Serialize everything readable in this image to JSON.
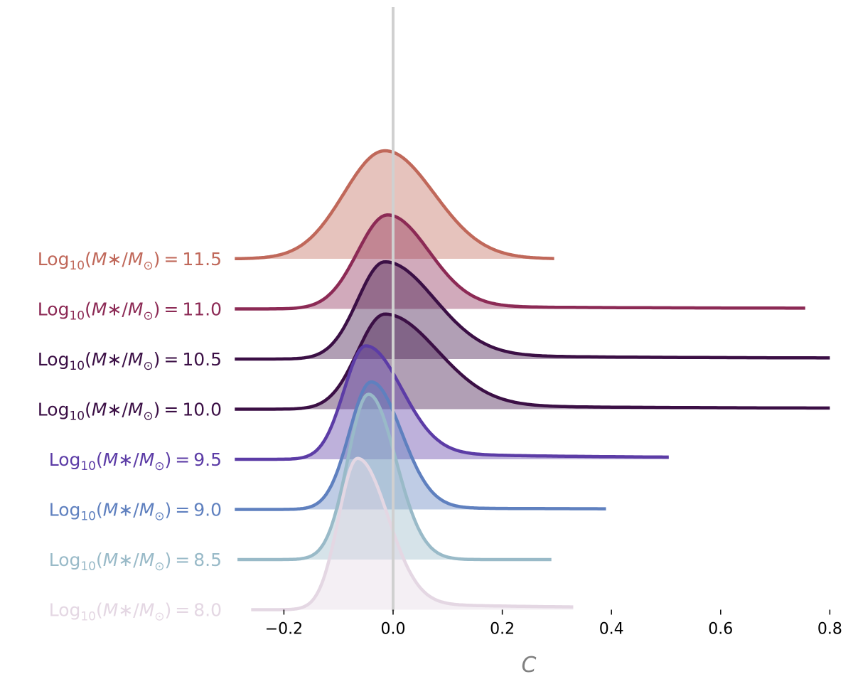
{
  "chart_data": {
    "type": "area",
    "xlabel": "C",
    "xlim": [
      -0.3,
      0.8
    ],
    "xticks": [
      -0.2,
      0.0,
      0.2,
      0.4,
      0.6,
      0.8
    ],
    "xtick_labels": [
      "−0.2",
      "0.0",
      "0.2",
      "0.4",
      "0.6",
      "0.8"
    ],
    "reference_line_x": 0.0,
    "grid": false,
    "legend": "none (row labels at left)",
    "series": [
      {
        "label_value": "11.5",
        "color": "#c0685a",
        "xrange": [
          -0.29,
          0.295
        ],
        "peak": -0.015,
        "peak_height": 1.0,
        "left_width": 0.075,
        "right_width": 0.09,
        "tail": 0.0
      },
      {
        "label_value": "11.0",
        "color": "#8c2a55",
        "xrange": [
          -0.29,
          0.755
        ],
        "peak": -0.01,
        "peak_height": 0.87,
        "left_width": 0.055,
        "right_width": 0.075,
        "tail": 0.04
      },
      {
        "label_value": "10.5",
        "color": "#3b0f45",
        "xrange": [
          -0.29,
          0.8
        ],
        "peak": -0.015,
        "peak_height": 0.9,
        "left_width": 0.05,
        "right_width": 0.09,
        "tail": 0.06
      },
      {
        "label_value": "10.0",
        "color": "#3b0f45",
        "xrange": [
          -0.29,
          0.8
        ],
        "peak": -0.015,
        "peak_height": 0.88,
        "left_width": 0.05,
        "right_width": 0.095,
        "tail": 0.06
      },
      {
        "label_value": "9.5",
        "color": "#5c3ca6",
        "xrange": [
          -0.29,
          0.505
        ],
        "peak": -0.05,
        "peak_height": 1.05,
        "left_width": 0.04,
        "right_width": 0.065,
        "tail": 0.07
      },
      {
        "label_value": "9.0",
        "color": "#5f80bf",
        "xrange": [
          -0.29,
          0.39
        ],
        "peak": -0.04,
        "peak_height": 1.18,
        "left_width": 0.04,
        "right_width": 0.055,
        "tail": 0.015
      },
      {
        "label_value": "8.5",
        "color": "#99bac8",
        "xrange": [
          -0.285,
          0.29
        ],
        "peak": -0.045,
        "peak_height": 1.53,
        "left_width": 0.038,
        "right_width": 0.05,
        "tail": 0.0
      },
      {
        "label_value": "8.0",
        "color": "#e4d7e3",
        "xrange": [
          -0.26,
          0.33
        ],
        "peak": -0.065,
        "peak_height": 1.4,
        "left_width": 0.035,
        "right_width": 0.055,
        "tail": 0.05
      }
    ]
  }
}
